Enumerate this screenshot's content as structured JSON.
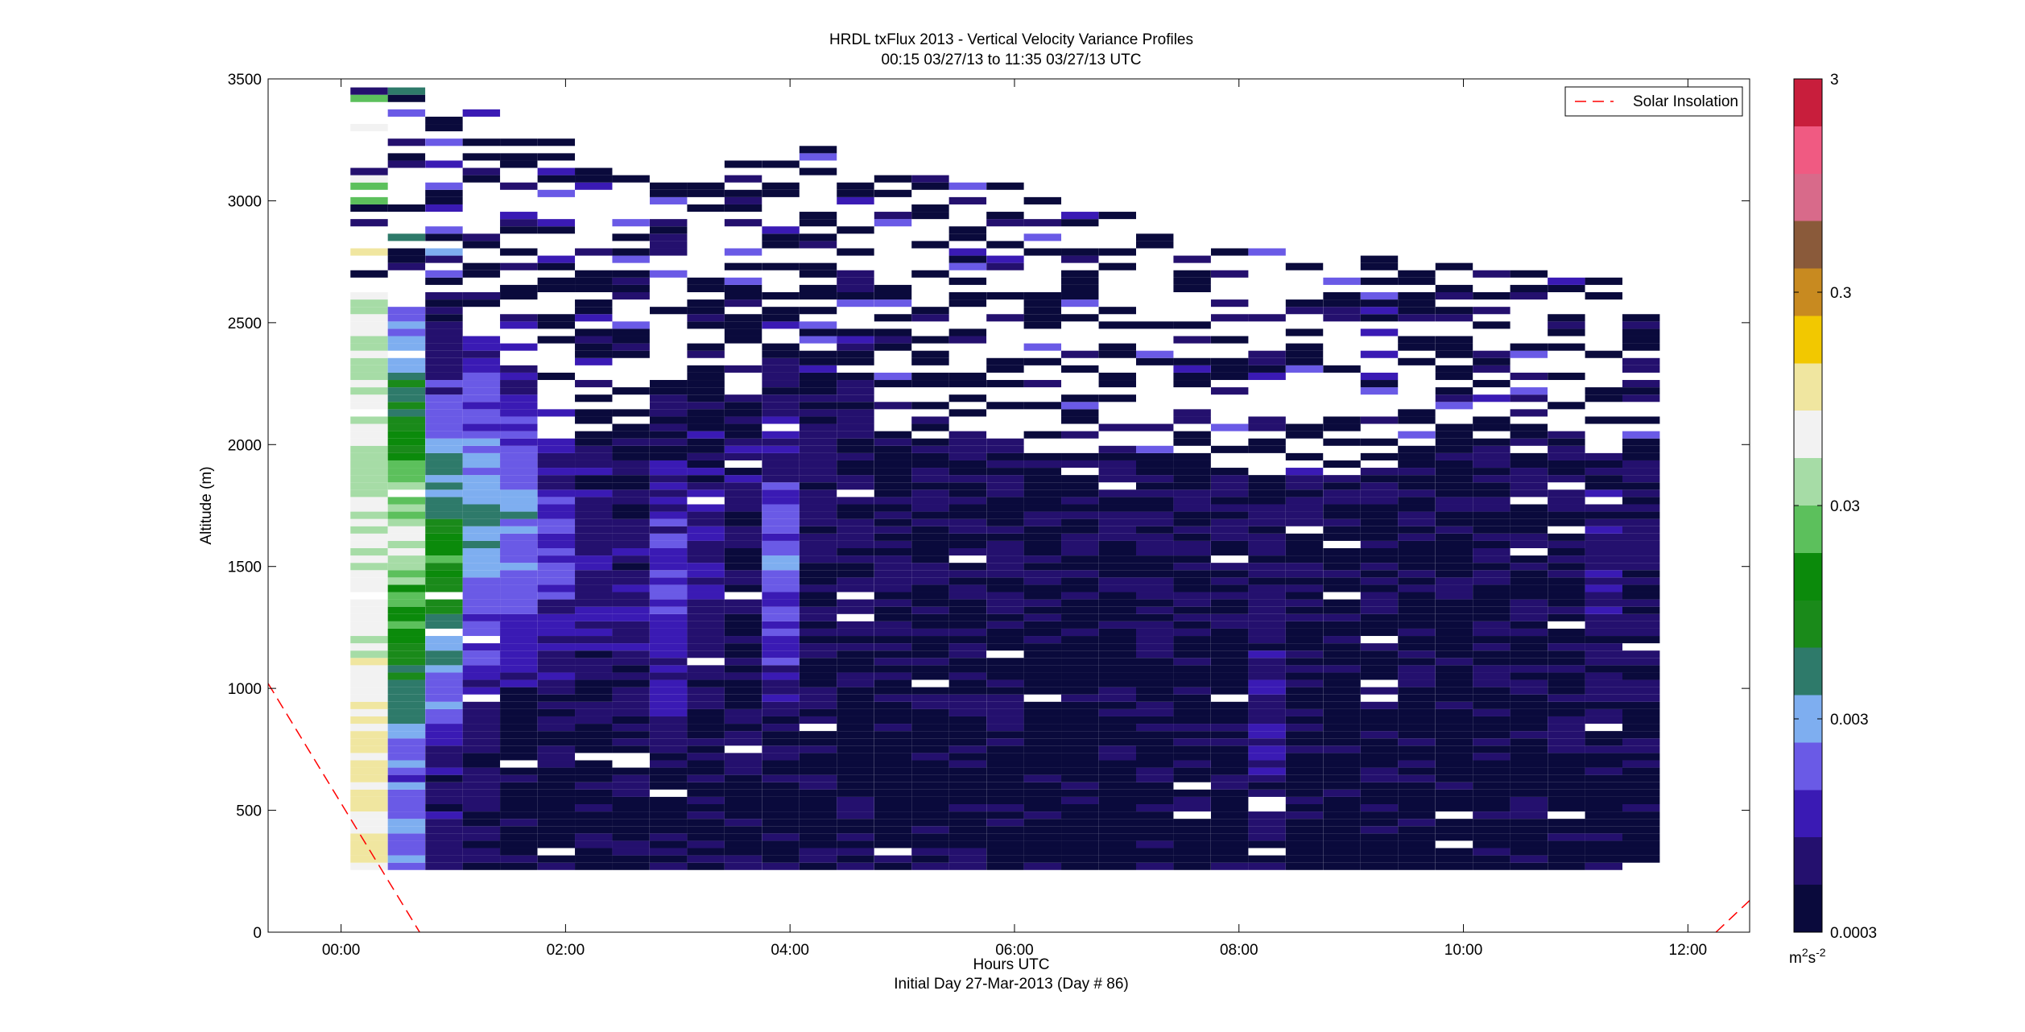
{
  "chart_data": {
    "type": "heatmap",
    "title": "HRDL txFlux 2013 - Vertical Velocity Variance Profiles",
    "subtitle": "00:15 03/27/13 to 11:35 03/27/13  UTC",
    "xlabel": "Hours UTC",
    "xlabel2": "Initial Day 27-Mar-2013 (Day # 86)",
    "ylabel": "Altitude (m)",
    "xlim": [
      -0.65,
      12.55
    ],
    "ylim": [
      0,
      3500
    ],
    "x_ticks": [
      0,
      2,
      4,
      6,
      8,
      10,
      12
    ],
    "x_tick_labels": [
      "00:00",
      "02:00",
      "04:00",
      "06:00",
      "08:00",
      "10:00",
      "12:00"
    ],
    "y_ticks": [
      0,
      500,
      1000,
      1500,
      2000,
      2500,
      3000,
      3500
    ],
    "y_tick_labels": [
      "0",
      "500",
      "1000",
      "1500",
      "2000",
      "2500",
      "3000",
      "3500"
    ],
    "colorbar": {
      "scale": "log",
      "range": [
        0.0003,
        3
      ],
      "ticks": [
        0.0003,
        0.003,
        0.03,
        0.3,
        3
      ],
      "tick_labels": [
        "0.0003",
        "0.003",
        "0.03",
        "0.3",
        "3"
      ],
      "unit_label": "m",
      "unit_exponent": "2",
      "unit_suffix": "s",
      "unit_suffix_exponent": "-2",
      "colors": [
        "#0a0a3c",
        "#24106e",
        "#3a1ab4",
        "#6a5ae6",
        "#7eaef0",
        "#2e7a6a",
        "#1a8a1a",
        "#0b8a0b",
        "#5cc05c",
        "#a6dca6",
        "#f2f2f2",
        "#f0e6a0",
        "#f2c800",
        "#c88a20",
        "#8a5a3a",
        "#d86a8a",
        "#f05a82",
        "#c81e3c"
      ]
    },
    "profile_times_hours": [
      0.25,
      0.583,
      0.917,
      1.25,
      1.583,
      1.917,
      2.25,
      2.583,
      2.917,
      3.25,
      3.583,
      3.917,
      4.25,
      4.583,
      4.917,
      5.25,
      5.583,
      5.917,
      6.25,
      6.583,
      6.917,
      7.25,
      7.583,
      7.917,
      8.25,
      8.583,
      8.917,
      9.25,
      9.583,
      9.917,
      10.25,
      10.583,
      10.917,
      11.25,
      11.583
    ],
    "profile_width_hours": 0.333,
    "range_gate_m": 30,
    "lowest_gate_m": 255,
    "profile_tops_m": [
      3500,
      3500,
      3400,
      3400,
      3250,
      3250,
      3150,
      3100,
      3100,
      3100,
      3150,
      3150,
      3200,
      3150,
      3100,
      3100,
      3050,
      3050,
      3000,
      2950,
      2950,
      2850,
      2850,
      2850,
      2800,
      2800,
      2800,
      2800,
      2800,
      2750,
      2700,
      2700,
      2700,
      2700,
      2650
    ],
    "solid_low_tops_m": [
      2600,
      2550,
      2600,
      2500,
      2300,
      2000,
      2000,
      2050,
      2250,
      2200,
      2200,
      2350,
      2150,
      2250,
      2050,
      2000,
      2000,
      2000,
      1950,
      1950,
      1950,
      1950,
      1950,
      1900,
      1850,
      1850,
      1900,
      1900,
      1900,
      2000,
      2000,
      2000,
      2050,
      1950,
      2000
    ],
    "profile_var_near_sfc_m2s2": [
      0.05,
      0.002,
      0.0006,
      0.0005,
      0.0004,
      0.0004,
      0.0004,
      0.0004,
      0.0004,
      0.0004,
      0.0004,
      0.0004,
      0.0004,
      0.0004,
      0.0004,
      0.0004,
      0.0004,
      0.0004,
      0.0004,
      0.0004,
      0.0004,
      0.0004,
      0.0004,
      0.0004,
      0.0004,
      0.0004,
      0.0004,
      0.0004,
      0.0004,
      0.0004,
      0.0004,
      0.0004,
      0.0004,
      0.0004,
      0.0004
    ],
    "profile_var_peak_m2s2": [
      0.1,
      0.05,
      0.015,
      0.005,
      0.003,
      0.0015,
      0.0008,
      0.0008,
      0.0015,
      0.001,
      0.0006,
      0.002,
      0.0006,
      0.0005,
      0.0005,
      0.0005,
      0.0005,
      0.0005,
      0.0005,
      0.0005,
      0.0005,
      0.0005,
      0.0005,
      0.0005,
      0.0008,
      0.0005,
      0.0005,
      0.0005,
      0.0005,
      0.0005,
      0.0005,
      0.0005,
      0.0005,
      0.0008,
      0.0005
    ],
    "profile_var_peak_alt_m": [
      700,
      1600,
      1500,
      1700,
      1700,
      1600,
      1500,
      1300,
      1400,
      1500,
      1900,
      1500,
      2000,
      1800,
      1800,
      1700,
      1800,
      1700,
      1700,
      1700,
      1700,
      1700,
      1700,
      1700,
      850,
      1700,
      1700,
      1700,
      1700,
      1700,
      1700,
      1700,
      1700,
      1450,
      1700
    ],
    "series": [
      {
        "name": "Solar Insolation",
        "style": "dashed",
        "color": "#ff0000",
        "segments": [
          {
            "x": [
              -0.65,
              0.7
            ],
            "y": [
              1020,
              0
            ]
          },
          {
            "x": [
              12.25,
              12.55
            ],
            "y": [
              0,
              130
            ]
          }
        ]
      }
    ],
    "legend": {
      "position": "top-right",
      "entries": [
        "Solar Insolation"
      ]
    },
    "grid": false
  }
}
